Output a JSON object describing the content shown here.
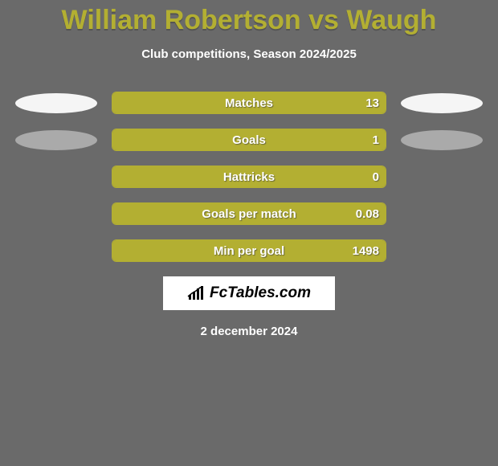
{
  "title": "William Robertson vs Waugh",
  "subtitle": "Club competitions, Season 2024/2025",
  "colors": {
    "background": "#6a6a6a",
    "accent": "#b3af32",
    "text": "#ffffff",
    "placeholder_light": "#f5f5f5",
    "placeholder_dark": "#aaaaaa",
    "logo_bg": "#ffffff",
    "logo_text": "#000000"
  },
  "rows": [
    {
      "label": "Matches",
      "left": "",
      "right": "13",
      "left_pct": 0,
      "right_pct": 100,
      "show_left_placeholder": true,
      "show_left_light": true,
      "show_right_placeholder": true,
      "show_right_light": true
    },
    {
      "label": "Goals",
      "left": "",
      "right": "1",
      "left_pct": 0,
      "right_pct": 100,
      "show_left_placeholder": true,
      "show_left_light": false,
      "show_right_placeholder": true,
      "show_right_light": false
    },
    {
      "label": "Hattricks",
      "left": "",
      "right": "0",
      "left_pct": 50,
      "right_pct": 50,
      "show_left_placeholder": false,
      "show_left_light": false,
      "show_right_placeholder": false,
      "show_right_light": false
    },
    {
      "label": "Goals per match",
      "left": "",
      "right": "0.08",
      "left_pct": 0,
      "right_pct": 100,
      "show_left_placeholder": false,
      "show_left_light": false,
      "show_right_placeholder": false,
      "show_right_light": false
    },
    {
      "label": "Min per goal",
      "left": "",
      "right": "1498",
      "left_pct": 0,
      "right_pct": 100,
      "show_left_placeholder": false,
      "show_left_light": false,
      "show_right_placeholder": false,
      "show_right_light": false
    }
  ],
  "logo": {
    "text": "FcTables.com"
  },
  "date": "2 december 2024"
}
